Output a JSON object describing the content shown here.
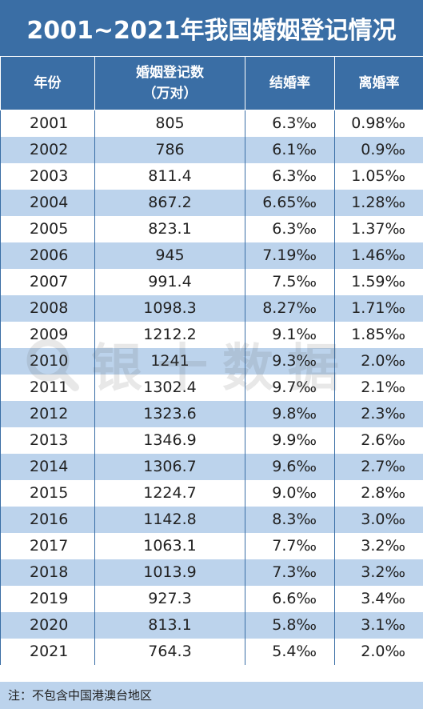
{
  "title": "2001~2021年我国婚姻登记情况",
  "note": "注：不包含中国港澳台地区",
  "watermark": "银十数据",
  "chart_data": {
    "type": "table",
    "columns": [
      "年份",
      "婚姻登记数\n（万对）",
      "结婚率",
      "离婚率"
    ],
    "header": {
      "year": "年份",
      "count_line1": "婚姻登记数",
      "count_line2": "（万对）",
      "marriage_rate": "结婚率",
      "divorce_rate": "离婚率"
    },
    "rows": [
      {
        "year": "2001",
        "count": "805",
        "marriage": "6.3‰",
        "divorce": "0.98‰"
      },
      {
        "year": "2002",
        "count": "786",
        "marriage": "6.1‰",
        "divorce": "0.9‰"
      },
      {
        "year": "2003",
        "count": "811.4",
        "marriage": "6.3‰",
        "divorce": "1.05‰"
      },
      {
        "year": "2004",
        "count": "867.2",
        "marriage": "6.65‰",
        "divorce": "1.28‰"
      },
      {
        "year": "2005",
        "count": "823.1",
        "marriage": "6.3‰",
        "divorce": "1.37‰"
      },
      {
        "year": "2006",
        "count": "945",
        "marriage": "7.19‰",
        "divorce": "1.46‰"
      },
      {
        "year": "2007",
        "count": "991.4",
        "marriage": "7.5‰",
        "divorce": "1.59‰"
      },
      {
        "year": "2008",
        "count": "1098.3",
        "marriage": "8.27‰",
        "divorce": "1.71‰"
      },
      {
        "year": "2009",
        "count": "1212.2",
        "marriage": "9.1‰",
        "divorce": "1.85‰"
      },
      {
        "year": "2010",
        "count": "1241",
        "marriage": "9.3‰",
        "divorce": "2.0‰"
      },
      {
        "year": "2011",
        "count": "1302.4",
        "marriage": "9.7‰",
        "divorce": "2.1‰"
      },
      {
        "year": "2012",
        "count": "1323.6",
        "marriage": "9.8‰",
        "divorce": "2.3‰"
      },
      {
        "year": "2013",
        "count": "1346.9",
        "marriage": "9.9‰",
        "divorce": "2.6‰"
      },
      {
        "year": "2014",
        "count": "1306.7",
        "marriage": "9.6‰",
        "divorce": "2.7‰"
      },
      {
        "year": "2015",
        "count": "1224.7",
        "marriage": "9.0‰",
        "divorce": "2.8‰"
      },
      {
        "year": "2016",
        "count": "1142.8",
        "marriage": "8.3‰",
        "divorce": "3.0‰"
      },
      {
        "year": "2017",
        "count": "1063.1",
        "marriage": "7.7‰",
        "divorce": "3.2‰"
      },
      {
        "year": "2018",
        "count": "1013.9",
        "marriage": "7.3‰",
        "divorce": "3.2‰"
      },
      {
        "year": "2019",
        "count": "927.3",
        "marriage": "6.6‰",
        "divorce": "3.4‰"
      },
      {
        "year": "2020",
        "count": "813.1",
        "marriage": "5.8‰",
        "divorce": "3.1‰"
      },
      {
        "year": "2021",
        "count": "764.3",
        "marriage": "5.4‰",
        "divorce": "2.0‰"
      }
    ]
  },
  "colors": {
    "header_bg": "#3a6ea5",
    "alt_row_bg": "#bcd3ec",
    "text": "#222222"
  }
}
